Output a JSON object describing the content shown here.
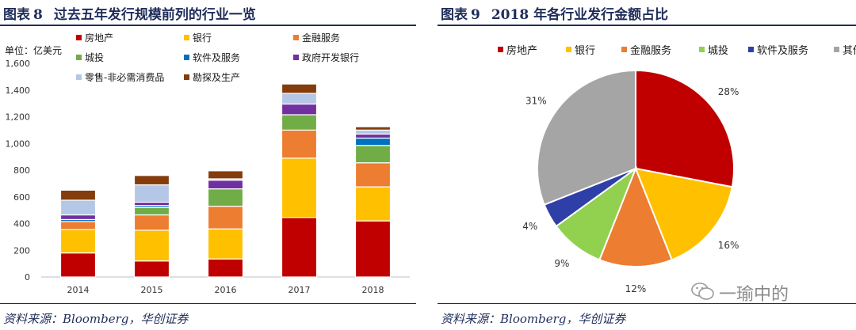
{
  "left": {
    "figure_label": "图表",
    "figure_number": "8",
    "title": "过去五年发行规模前列的行业一览",
    "source": "资料来源：Bloomberg，华创证券"
  },
  "right": {
    "figure_label": "图表",
    "figure_number": "9",
    "title": "2018 年各行业发行金额占比",
    "source": "资料来源：Bloomberg，华创证券"
  },
  "watermark": "一瑜中的",
  "colors": {
    "房地产": "#c00000",
    "银行": "#ffc000",
    "金融服务": "#ed7d31",
    "城投": "#70ad47",
    "软件及服务": "#0070c0",
    "政府开发银行": "#7030a0",
    "零售-非必需消费品": "#b4c7e7",
    "勘探及生产": "#843c0c",
    "pie_城投": "#92d050",
    "pie_软件及服务": "#2f3fa8",
    "pie_其他": "#a5a5a5"
  },
  "chart_data": [
    {
      "type": "bar",
      "stacked": true,
      "title": "过去五年发行规模前列的行业一览",
      "ylabel": "单位：亿美元",
      "categories": [
        "2014",
        "2015",
        "2016",
        "2017",
        "2018"
      ],
      "ylim": [
        0,
        1600
      ],
      "yticks": [
        0,
        200,
        400,
        600,
        800,
        "1,000",
        "1,200",
        "1,400",
        "1,600"
      ],
      "series": [
        {
          "name": "房地产",
          "values": [
            180,
            120,
            135,
            445,
            420
          ]
        },
        {
          "name": "银行",
          "values": [
            175,
            230,
            225,
            445,
            255
          ]
        },
        {
          "name": "金融服务",
          "values": [
            60,
            115,
            170,
            210,
            180
          ]
        },
        {
          "name": "城投",
          "values": [
            0,
            55,
            130,
            115,
            130
          ]
        },
        {
          "name": "软件及服务",
          "values": [
            15,
            15,
            0,
            0,
            55
          ]
        },
        {
          "name": "政府开发银行",
          "values": [
            35,
            25,
            65,
            80,
            30
          ]
        },
        {
          "name": "零售-非必需消费品",
          "values": [
            110,
            130,
            10,
            80,
            30
          ]
        },
        {
          "name": "勘探及生产",
          "values": [
            75,
            70,
            60,
            70,
            25
          ]
        }
      ],
      "legend_position": "top"
    },
    {
      "type": "pie",
      "title": "2018 年各行业发行金额占比",
      "labels": [
        "房地产",
        "银行",
        "金融服务",
        "城投",
        "软件及服务",
        "其他"
      ],
      "values": [
        28,
        16,
        12,
        9,
        4,
        31
      ],
      "value_labels": [
        "28%",
        "16%",
        "12%",
        "9%",
        "4%",
        "31%"
      ],
      "legend_position": "top"
    }
  ]
}
